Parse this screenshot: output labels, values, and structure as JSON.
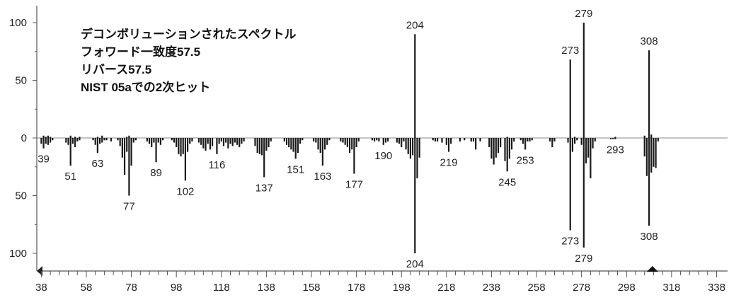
{
  "chart_data": {
    "type": "bar",
    "title_lines": [
      "デコンボリューションされたスペクトル",
      "フォワード一致度57.5",
      "リバース57.5",
      "NIST 05aでの2次ヒット"
    ],
    "xlim": [
      36,
      341
    ],
    "x_tick_labels": [
      38,
      58,
      78,
      98,
      118,
      138,
      158,
      178,
      198,
      218,
      238,
      258,
      278,
      298,
      318,
      338
    ],
    "ylim_top": [
      0,
      100
    ],
    "ylim_bottom": [
      0,
      100
    ],
    "y_tick_labels_top": [
      "100",
      "50",
      "0"
    ],
    "y_tick_labels_bottom": [
      "50",
      "100"
    ],
    "series": [
      {
        "direction": "up",
        "bars": [
          {
            "x": 39,
            "y": 2
          },
          {
            "x": 40,
            "y": 1
          },
          {
            "x": 41,
            "y": 2
          },
          {
            "x": 42,
            "y": 1
          },
          {
            "x": 51,
            "y": 2
          },
          {
            "x": 53,
            "y": 1
          },
          {
            "x": 55,
            "y": 1
          },
          {
            "x": 63,
            "y": 1
          },
          {
            "x": 65,
            "y": 2
          },
          {
            "x": 76,
            "y": 1
          },
          {
            "x": 77,
            "y": 2
          },
          {
            "x": 204,
            "y": 90
          },
          {
            "x": 245,
            "y": 1
          },
          {
            "x": 273,
            "y": 68
          },
          {
            "x": 275,
            "y": 1
          },
          {
            "x": 279,
            "y": 100
          },
          {
            "x": 293,
            "y": 1
          },
          {
            "x": 306,
            "y": 2
          },
          {
            "x": 308,
            "y": 76
          },
          {
            "x": 309,
            "y": 3
          }
        ],
        "labels": [
          {
            "x": 204,
            "y": 90,
            "text": "204"
          },
          {
            "x": 273,
            "y": 68,
            "text": "273"
          },
          {
            "x": 279,
            "y": 100,
            "text": "279"
          },
          {
            "x": 308,
            "y": 76,
            "text": "308"
          }
        ]
      },
      {
        "direction": "down",
        "bars": [
          {
            "x": 38,
            "y": 5
          },
          {
            "x": 39,
            "y": 9
          },
          {
            "x": 40,
            "y": 5
          },
          {
            "x": 41,
            "y": 6
          },
          {
            "x": 42,
            "y": 4
          },
          {
            "x": 43,
            "y": 2
          },
          {
            "x": 49,
            "y": 4
          },
          {
            "x": 50,
            "y": 6
          },
          {
            "x": 51,
            "y": 24
          },
          {
            "x": 52,
            "y": 5
          },
          {
            "x": 53,
            "y": 8
          },
          {
            "x": 54,
            "y": 3
          },
          {
            "x": 55,
            "y": 2
          },
          {
            "x": 61,
            "y": 2
          },
          {
            "x": 62,
            "y": 6
          },
          {
            "x": 63,
            "y": 13
          },
          {
            "x": 64,
            "y": 5
          },
          {
            "x": 65,
            "y": 4
          },
          {
            "x": 66,
            "y": 2
          },
          {
            "x": 67,
            "y": 2
          },
          {
            "x": 69,
            "y": 3
          },
          {
            "x": 72,
            "y": 2
          },
          {
            "x": 73,
            "y": 7
          },
          {
            "x": 74,
            "y": 17
          },
          {
            "x": 75,
            "y": 32
          },
          {
            "x": 76,
            "y": 12
          },
          {
            "x": 77,
            "y": 50
          },
          {
            "x": 78,
            "y": 24
          },
          {
            "x": 79,
            "y": 4
          },
          {
            "x": 80,
            "y": 2
          },
          {
            "x": 85,
            "y": 3
          },
          {
            "x": 86,
            "y": 5
          },
          {
            "x": 87,
            "y": 8
          },
          {
            "x": 88,
            "y": 4
          },
          {
            "x": 89,
            "y": 21
          },
          {
            "x": 90,
            "y": 4
          },
          {
            "x": 91,
            "y": 6
          },
          {
            "x": 92,
            "y": 2
          },
          {
            "x": 96,
            "y": 2
          },
          {
            "x": 97,
            "y": 4
          },
          {
            "x": 98,
            "y": 8
          },
          {
            "x": 99,
            "y": 14
          },
          {
            "x": 100,
            "y": 16
          },
          {
            "x": 101,
            "y": 14
          },
          {
            "x": 102,
            "y": 37
          },
          {
            "x": 103,
            "y": 12
          },
          {
            "x": 104,
            "y": 5
          },
          {
            "x": 105,
            "y": 3
          },
          {
            "x": 108,
            "y": 4
          },
          {
            "x": 109,
            "y": 6
          },
          {
            "x": 110,
            "y": 9
          },
          {
            "x": 111,
            "y": 11
          },
          {
            "x": 112,
            "y": 5
          },
          {
            "x": 113,
            "y": 10
          },
          {
            "x": 114,
            "y": 7
          },
          {
            "x": 116,
            "y": 14
          },
          {
            "x": 117,
            "y": 5
          },
          {
            "x": 118,
            "y": 3
          },
          {
            "x": 119,
            "y": 7
          },
          {
            "x": 120,
            "y": 4
          },
          {
            "x": 121,
            "y": 9
          },
          {
            "x": 122,
            "y": 5
          },
          {
            "x": 123,
            "y": 7
          },
          {
            "x": 124,
            "y": 4
          },
          {
            "x": 125,
            "y": 6
          },
          {
            "x": 126,
            "y": 8
          },
          {
            "x": 127,
            "y": 5
          },
          {
            "x": 128,
            "y": 3
          },
          {
            "x": 133,
            "y": 7
          },
          {
            "x": 134,
            "y": 13
          },
          {
            "x": 135,
            "y": 14
          },
          {
            "x": 136,
            "y": 15
          },
          {
            "x": 137,
            "y": 34
          },
          {
            "x": 138,
            "y": 11
          },
          {
            "x": 139,
            "y": 8
          },
          {
            "x": 140,
            "y": 3
          },
          {
            "x": 146,
            "y": 3
          },
          {
            "x": 147,
            "y": 6
          },
          {
            "x": 148,
            "y": 8
          },
          {
            "x": 149,
            "y": 10
          },
          {
            "x": 150,
            "y": 12
          },
          {
            "x": 151,
            "y": 18
          },
          {
            "x": 152,
            "y": 13
          },
          {
            "x": 153,
            "y": 5
          },
          {
            "x": 154,
            "y": 2
          },
          {
            "x": 159,
            "y": 3
          },
          {
            "x": 160,
            "y": 4
          },
          {
            "x": 161,
            "y": 10
          },
          {
            "x": 162,
            "y": 13
          },
          {
            "x": 163,
            "y": 24
          },
          {
            "x": 164,
            "y": 10
          },
          {
            "x": 165,
            "y": 6
          },
          {
            "x": 166,
            "y": 2
          },
          {
            "x": 171,
            "y": 3
          },
          {
            "x": 172,
            "y": 4
          },
          {
            "x": 173,
            "y": 6
          },
          {
            "x": 174,
            "y": 8
          },
          {
            "x": 175,
            "y": 13
          },
          {
            "x": 176,
            "y": 10
          },
          {
            "x": 177,
            "y": 31
          },
          {
            "x": 178,
            "y": 8
          },
          {
            "x": 179,
            "y": 3
          },
          {
            "x": 185,
            "y": 2
          },
          {
            "x": 186,
            "y": 3
          },
          {
            "x": 187,
            "y": 2
          },
          {
            "x": 188,
            "y": 3
          },
          {
            "x": 190,
            "y": 6
          },
          {
            "x": 191,
            "y": 4
          },
          {
            "x": 192,
            "y": 3
          },
          {
            "x": 196,
            "y": 4
          },
          {
            "x": 197,
            "y": 5
          },
          {
            "x": 198,
            "y": 8
          },
          {
            "x": 199,
            "y": 3
          },
          {
            "x": 200,
            "y": 10
          },
          {
            "x": 201,
            "y": 14
          },
          {
            "x": 202,
            "y": 18
          },
          {
            "x": 203,
            "y": 15
          },
          {
            "x": 204,
            "y": 100
          },
          {
            "x": 205,
            "y": 35
          },
          {
            "x": 206,
            "y": 17
          },
          {
            "x": 212,
            "y": 2
          },
          {
            "x": 213,
            "y": 3
          },
          {
            "x": 214,
            "y": 3
          },
          {
            "x": 216,
            "y": 4
          },
          {
            "x": 218,
            "y": 6
          },
          {
            "x": 219,
            "y": 12
          },
          {
            "x": 220,
            "y": 5
          },
          {
            "x": 224,
            "y": 3
          },
          {
            "x": 226,
            "y": 2
          },
          {
            "x": 229,
            "y": 3
          },
          {
            "x": 230,
            "y": 3
          },
          {
            "x": 231,
            "y": 10
          },
          {
            "x": 233,
            "y": 3
          },
          {
            "x": 237,
            "y": 8
          },
          {
            "x": 238,
            "y": 18
          },
          {
            "x": 239,
            "y": 23
          },
          {
            "x": 240,
            "y": 17
          },
          {
            "x": 241,
            "y": 13
          },
          {
            "x": 242,
            "y": 8
          },
          {
            "x": 244,
            "y": 20
          },
          {
            "x": 245,
            "y": 29
          },
          {
            "x": 246,
            "y": 18
          },
          {
            "x": 247,
            "y": 10
          },
          {
            "x": 248,
            "y": 3
          },
          {
            "x": 251,
            "y": 2
          },
          {
            "x": 252,
            "y": 5
          },
          {
            "x": 253,
            "y": 10
          },
          {
            "x": 254,
            "y": 3
          },
          {
            "x": 255,
            "y": 3
          },
          {
            "x": 256,
            "y": 2
          },
          {
            "x": 264,
            "y": 3
          },
          {
            "x": 265,
            "y": 8
          },
          {
            "x": 266,
            "y": 3
          },
          {
            "x": 272,
            "y": 4
          },
          {
            "x": 273,
            "y": 80
          },
          {
            "x": 274,
            "y": 12
          },
          {
            "x": 275,
            "y": 5
          },
          {
            "x": 276,
            "y": 2
          },
          {
            "x": 278,
            "y": 6
          },
          {
            "x": 279,
            "y": 95
          },
          {
            "x": 280,
            "y": 22
          },
          {
            "x": 281,
            "y": 17
          },
          {
            "x": 282,
            "y": 35
          },
          {
            "x": 283,
            "y": 9
          },
          {
            "x": 284,
            "y": 3
          },
          {
            "x": 291,
            "y": 1
          },
          {
            "x": 292,
            "y": 1
          },
          {
            "x": 293,
            "y": 1
          },
          {
            "x": 306,
            "y": 16
          },
          {
            "x": 307,
            "y": 33
          },
          {
            "x": 308,
            "y": 76
          },
          {
            "x": 309,
            "y": 30
          },
          {
            "x": 310,
            "y": 25
          },
          {
            "x": 311,
            "y": 26
          },
          {
            "x": 312,
            "y": 3
          }
        ],
        "labels": [
          {
            "x": 39,
            "y": 9,
            "text": "39"
          },
          {
            "x": 51,
            "y": 24,
            "text": "51"
          },
          {
            "x": 63,
            "y": 13,
            "text": "63"
          },
          {
            "x": 77,
            "y": 50,
            "text": "77"
          },
          {
            "x": 89,
            "y": 21,
            "text": "89"
          },
          {
            "x": 102,
            "y": 37,
            "text": "102"
          },
          {
            "x": 116,
            "y": 14,
            "text": "116"
          },
          {
            "x": 137,
            "y": 34,
            "text": "137"
          },
          {
            "x": 151,
            "y": 18,
            "text": "151"
          },
          {
            "x": 163,
            "y": 24,
            "text": "163"
          },
          {
            "x": 177,
            "y": 31,
            "text": "177"
          },
          {
            "x": 190,
            "y": 6,
            "text": "190"
          },
          {
            "x": 204,
            "y": 100,
            "text": "204"
          },
          {
            "x": 219,
            "y": 12,
            "text": "219"
          },
          {
            "x": 245,
            "y": 29,
            "text": "245"
          },
          {
            "x": 253,
            "y": 10,
            "text": "253"
          },
          {
            "x": 273,
            "y": 80,
            "text": "273"
          },
          {
            "x": 279,
            "y": 95,
            "text": "279"
          },
          {
            "x": 293,
            "y": 1,
            "text": "293"
          },
          {
            "x": 308,
            "y": 76,
            "text": "308"
          }
        ]
      }
    ],
    "grid": false,
    "colors": {
      "bars": "#1a1a1a",
      "axis": "#555555",
      "baseline": "#888888"
    }
  }
}
